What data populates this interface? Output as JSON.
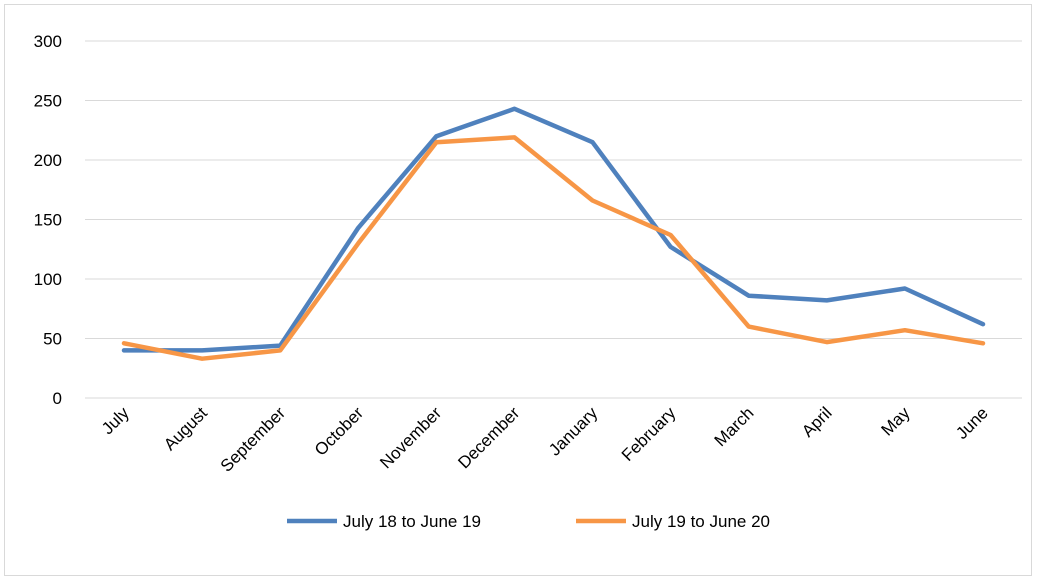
{
  "chart_data": {
    "type": "line",
    "title": "",
    "xlabel": "",
    "ylabel": "",
    "categories": [
      "July",
      "August",
      "September",
      "October",
      "November",
      "December",
      "January",
      "February",
      "March",
      "April",
      "May",
      "June"
    ],
    "y_ticks": [
      "0",
      "50",
      "100",
      "150",
      "200",
      "250",
      "300"
    ],
    "ylim": [
      0,
      300
    ],
    "grid": "horizontal",
    "legend_position": "bottom",
    "series": [
      {
        "name": "July 18 to June 19",
        "color": "#4f81bd",
        "values": [
          40,
          40,
          44,
          143,
          220,
          243,
          215,
          127,
          86,
          82,
          92,
          62
        ]
      },
      {
        "name": "July 19 to June 20",
        "color": "#f79646",
        "values": [
          46,
          33,
          40,
          130,
          215,
          219,
          166,
          137,
          60,
          47,
          57,
          46
        ]
      }
    ]
  }
}
